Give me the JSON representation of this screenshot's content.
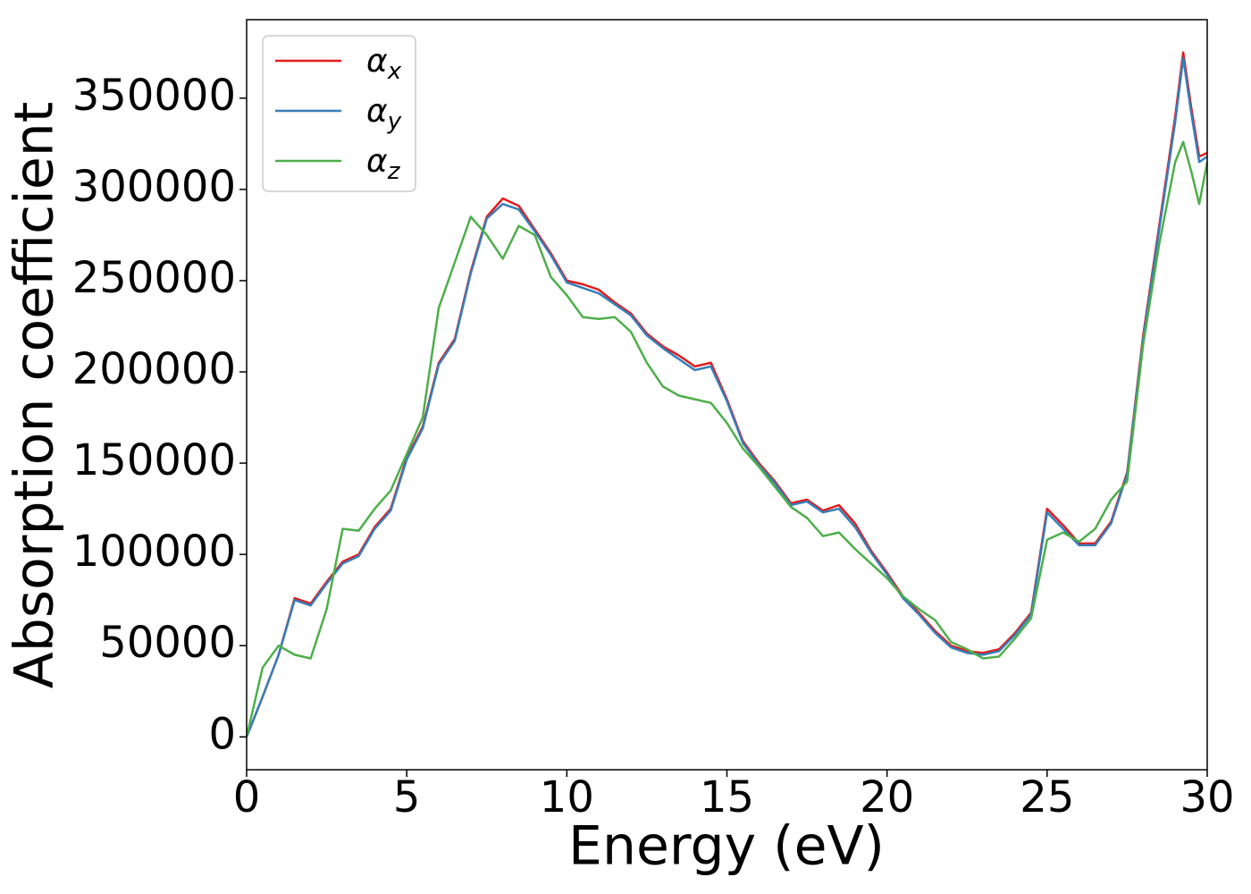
{
  "chart_data": {
    "type": "line",
    "xlabel": "Energy (eV)",
    "ylabel": "Absorption coefficient",
    "x": [
      0,
      0.5,
      1,
      1.5,
      2,
      2.5,
      3,
      3.5,
      4,
      4.5,
      5,
      5.5,
      6,
      6.5,
      7,
      7.5,
      8,
      8.5,
      9,
      9.5,
      10,
      10.5,
      11,
      11.5,
      12,
      12.5,
      13,
      13.5,
      14,
      14.5,
      15,
      15.5,
      16,
      16.5,
      17,
      17.5,
      18,
      18.5,
      19,
      19.5,
      20,
      20.5,
      21,
      21.5,
      22,
      22.5,
      23,
      23.5,
      24,
      24.5,
      25,
      25.5,
      26,
      26.5,
      27,
      27.5,
      28,
      28.5,
      29,
      29.25,
      29.5,
      29.75,
      30
    ],
    "series": [
      {
        "name": "αx",
        "color": "#e41a1c",
        "values": [
          0,
          22000,
          45000,
          76000,
          73000,
          85000,
          96000,
          100000,
          115000,
          125000,
          153000,
          170000,
          205000,
          218000,
          255000,
          285000,
          295000,
          291000,
          278000,
          265000,
          250000,
          248000,
          245000,
          238000,
          232000,
          221000,
          214000,
          209000,
          203000,
          205000,
          185000,
          162000,
          150000,
          140000,
          128000,
          130000,
          124000,
          127000,
          117000,
          102000,
          90000,
          77000,
          68000,
          58000,
          50000,
          47000,
          46000,
          48000,
          57000,
          68000,
          125000,
          116000,
          106000,
          106000,
          118000,
          145000,
          220000,
          280000,
          340000,
          375000,
          345000,
          318000,
          320000
        ]
      },
      {
        "name": "αy",
        "color": "#377eb8",
        "values": [
          0,
          22000,
          45000,
          75000,
          72000,
          84000,
          95000,
          99000,
          114000,
          124000,
          152000,
          169000,
          204000,
          217000,
          254000,
          284000,
          292000,
          289000,
          277000,
          264000,
          249000,
          246000,
          243000,
          237000,
          231000,
          220000,
          213000,
          207000,
          201000,
          203000,
          184000,
          161000,
          149000,
          139000,
          127000,
          129000,
          123000,
          125000,
          115000,
          101000,
          89000,
          76000,
          67000,
          57000,
          49000,
          46000,
          45000,
          47000,
          56000,
          67000,
          123000,
          114000,
          105000,
          105000,
          117000,
          144000,
          218000,
          278000,
          337000,
          372000,
          342000,
          315000,
          318000
        ]
      },
      {
        "name": "αz",
        "color": "#4daf4a",
        "values": [
          0,
          38000,
          50000,
          45000,
          43000,
          70000,
          114000,
          113000,
          125000,
          135000,
          155000,
          175000,
          235000,
          260000,
          285000,
          275000,
          262000,
          280000,
          275000,
          252000,
          242000,
          230000,
          229000,
          230000,
          222000,
          205000,
          192000,
          187000,
          185000,
          183000,
          172000,
          158000,
          148000,
          137000,
          126000,
          120000,
          110000,
          112000,
          103000,
          95000,
          87000,
          77000,
          70000,
          64000,
          52000,
          48000,
          43000,
          44000,
          54000,
          65000,
          108000,
          112000,
          107000,
          114000,
          130000,
          140000,
          215000,
          270000,
          315000,
          326000,
          310000,
          292000,
          315000
        ]
      }
    ],
    "xlim": [
      0,
      30
    ],
    "xticks": [
      0,
      5,
      10,
      15,
      20,
      25,
      30
    ],
    "ylim": [
      -18000,
      393000
    ],
    "yticks": [
      0,
      50000,
      100000,
      150000,
      200000,
      250000,
      300000,
      350000
    ],
    "legend": "upper left"
  }
}
